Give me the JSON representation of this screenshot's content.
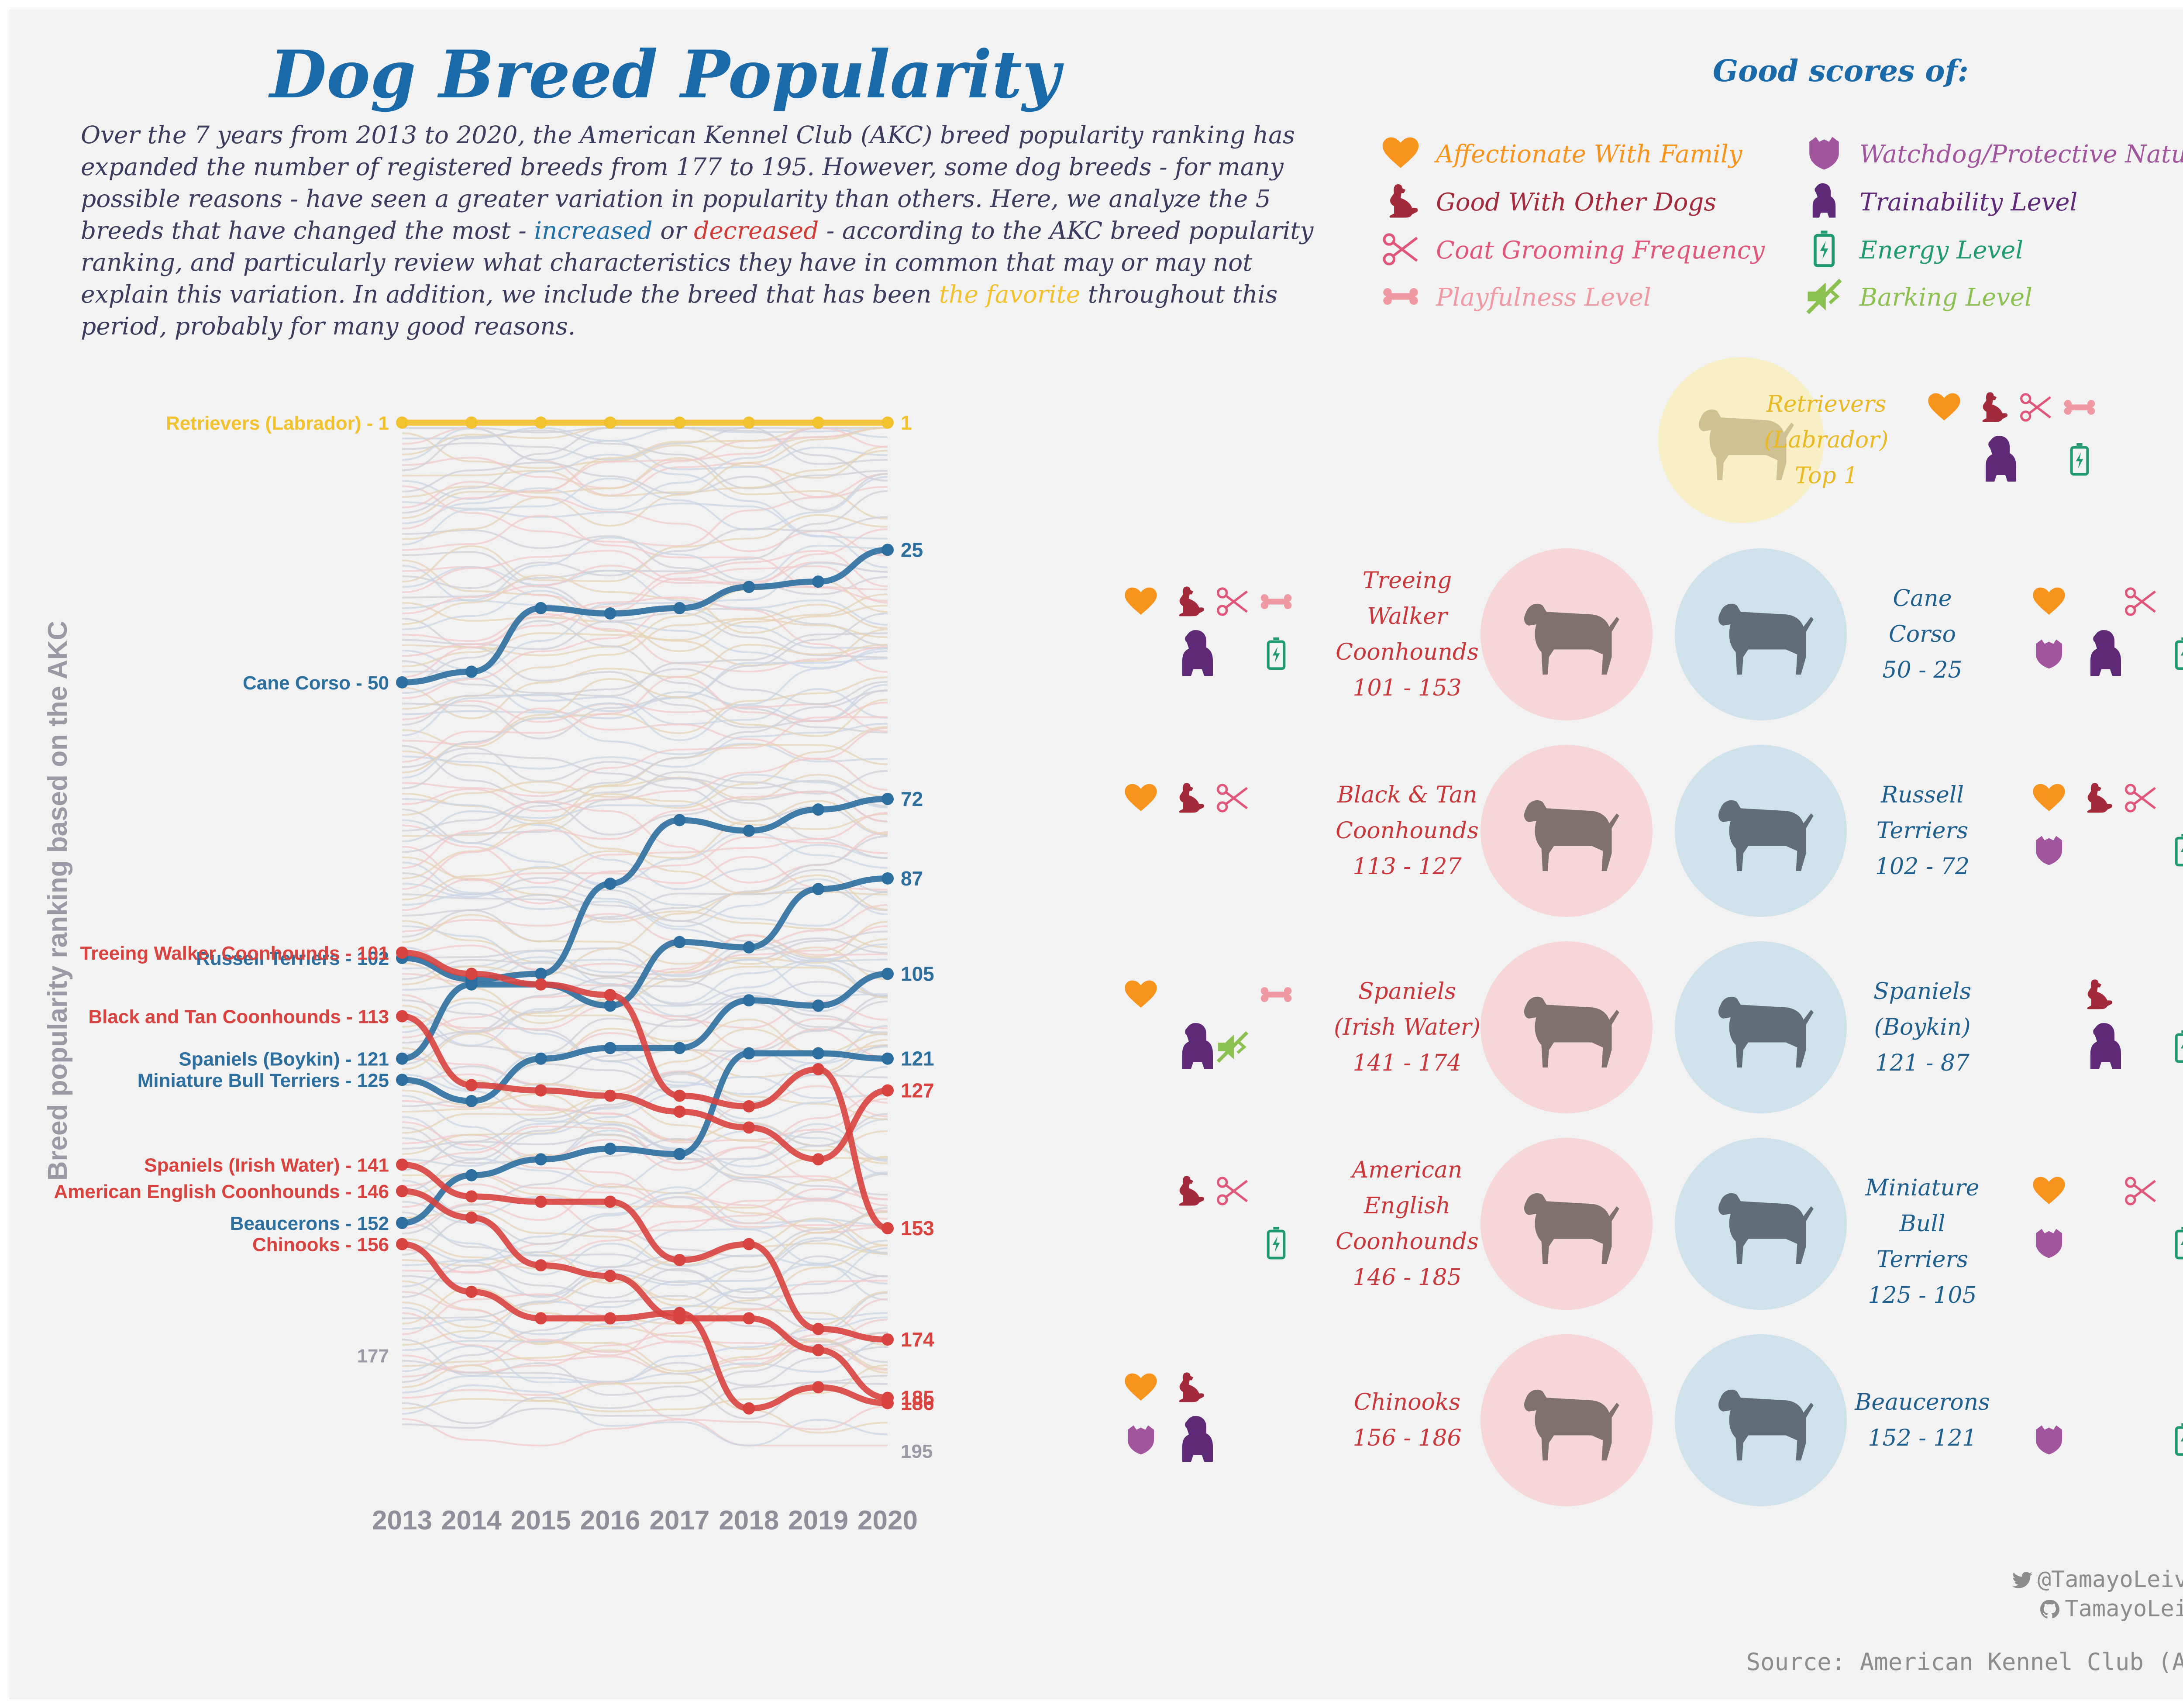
{
  "title": "Dog Breed Popularity",
  "intro": {
    "part1": "Over the 7 years from 2013 to 2020, the American Kennel Club (AKC) breed popularity ranking has expanded the number of registered breeds from 177 to 195. However, some dog breeds - for many possible reasons - have seen a greater variation in popularity than others. Here, we analyze the 5 breeds that have changed the most - ",
    "increased": "increased",
    "or": " or ",
    "decreased": "decreased",
    "part2": " - according to the AKC breed popularity ranking, and particularly review what characteristics they have in common that may or may not explain this variation. In addition, we include the breed that has been ",
    "favorite": "the favorite",
    "part3": " throughout this period, probably for many good reasons."
  },
  "legend": {
    "title": "Good scores of:",
    "items": [
      {
        "key": "affectionate",
        "label": "Affectionate With Family",
        "color": "#f7941d",
        "icon": "heart-icon"
      },
      {
        "key": "other_dogs",
        "label": "Good With Other Dogs",
        "color": "#a32a3a",
        "icon": "sitting-dog-icon"
      },
      {
        "key": "grooming",
        "label": "Coat Grooming Frequency",
        "color": "#e0567a",
        "icon": "scissors-icon"
      },
      {
        "key": "playfulness",
        "label": "Playfulness Level",
        "color": "#ef9aa2",
        "icon": "bone-icon"
      },
      {
        "key": "watchdog",
        "label": "Watchdog/Protective Nature",
        "color": "#a0559c",
        "icon": "shield-icon"
      },
      {
        "key": "trainability",
        "label": "Trainability Level",
        "color": "#5e2a78",
        "icon": "dog-bust-icon"
      },
      {
        "key": "energy",
        "label": "Energy Level",
        "color": "#1f9a72",
        "icon": "battery-icon"
      },
      {
        "key": "barking",
        "label": "Barking Level",
        "color": "#8cc152",
        "icon": "mute-icon"
      }
    ]
  },
  "chart_data": {
    "type": "line",
    "ylabel": "Breed popularity ranking based on the AKC",
    "x": [
      "2013",
      "2014",
      "2015",
      "2016",
      "2017",
      "2018",
      "2019",
      "2020"
    ],
    "y_reversed": true,
    "annotations": {
      "start_total": "177",
      "end_total": "195"
    },
    "colors": {
      "increased": "#2c6f9e",
      "decreased": "#d8433f",
      "favorite": "#f2c12e",
      "background": "#b9b9c4"
    },
    "series": [
      {
        "name": "Retrievers (Labrador)",
        "label": "Retrievers (Labrador) - 1",
        "end_label": "1",
        "group": "favorite",
        "values": [
          1,
          1,
          1,
          1,
          1,
          1,
          1,
          1
        ]
      },
      {
        "name": "Cane Corso",
        "label": "Cane Corso - 50",
        "end_label": "25",
        "group": "increased",
        "values": [
          50,
          48,
          36,
          37,
          36,
          32,
          31,
          25
        ]
      },
      {
        "name": "Russell Terriers",
        "label": "Russell Terriers - 102",
        "end_label": "72",
        "group": "increased",
        "values": [
          102,
          106,
          105,
          88,
          76,
          78,
          74,
          72
        ]
      },
      {
        "name": "Spaniels (Boykin)",
        "label": "Spaniels (Boykin) - 121",
        "end_label": "87",
        "group": "increased",
        "values": [
          121,
          107,
          107,
          111,
          99,
          100,
          89,
          87
        ]
      },
      {
        "name": "Miniature Bull Terriers",
        "label": "Miniature Bull Terriers - 125",
        "end_label": "105",
        "group": "increased",
        "values": [
          125,
          129,
          121,
          119,
          119,
          110,
          111,
          105
        ]
      },
      {
        "name": "Beaucerons",
        "label": "Beaucerons - 152",
        "end_label": "121",
        "group": "increased",
        "values": [
          152,
          143,
          140,
          138,
          139,
          120,
          120,
          121
        ]
      },
      {
        "name": "Treeing Walker Coonhounds",
        "label": "Treeing Walker Coonhounds - 101",
        "end_label": "153",
        "group": "decreased",
        "values": [
          101,
          105,
          107,
          109,
          128,
          130,
          123,
          153
        ]
      },
      {
        "name": "Black and Tan Coonhounds",
        "label": "Black and Tan Coonhounds - 113",
        "end_label": "127",
        "group": "decreased",
        "values": [
          113,
          126,
          127,
          128,
          131,
          134,
          140,
          127
        ]
      },
      {
        "name": "Spaniels (Irish Water)",
        "label": "Spaniels (Irish Water) - 141",
        "end_label": "174",
        "group": "decreased",
        "values": [
          141,
          147,
          148,
          148,
          159,
          156,
          172,
          174
        ]
      },
      {
        "name": "American English Coonhounds",
        "label": "American English Coonhounds - 146",
        "end_label": "185",
        "group": "decreased",
        "values": [
          146,
          151,
          160,
          162,
          170,
          170,
          176,
          185
        ]
      },
      {
        "name": "Chinooks",
        "label": "Chinooks - 156",
        "end_label": "186",
        "group": "decreased",
        "values": [
          156,
          165,
          170,
          170,
          169,
          187,
          183,
          186
        ]
      }
    ]
  },
  "cards": {
    "favorite": {
      "name": "Retrievers (Labrador)",
      "line1": "Retrievers",
      "line2": "(Labrador)",
      "line3": "Top 1",
      "scores": [
        "affectionate",
        "other_dogs",
        "grooming",
        "playfulness",
        "trainability",
        "energy"
      ]
    },
    "decreased": [
      {
        "line1": "Treeing",
        "line2": "Walker",
        "line3": "Coonhounds",
        "line4": "101 - 153",
        "scores": [
          "affectionate",
          "other_dogs",
          "grooming",
          "playfulness",
          "trainability",
          "energy"
        ]
      },
      {
        "line1": "Black & Tan",
        "line2": "Coonhounds",
        "line3": "113 - 127",
        "scores": [
          "affectionate",
          "other_dogs",
          "grooming"
        ]
      },
      {
        "line1": "Spaniels",
        "line2": "(Irish Water)",
        "line3": "141 - 174",
        "scores": [
          "affectionate",
          "playfulness",
          "trainability",
          "barking"
        ]
      },
      {
        "line1": "American",
        "line2": "English",
        "line3": "Coonhounds",
        "line4": "146 - 185",
        "scores": [
          "other_dogs",
          "grooming",
          "energy"
        ]
      },
      {
        "line1": "Chinooks",
        "line2": "156 - 186",
        "scores": [
          "affectionate",
          "other_dogs",
          "watchdog",
          "trainability"
        ]
      }
    ],
    "increased": [
      {
        "line1": "Cane",
        "line2": "Corso",
        "line3": "50 - 25",
        "scores": [
          "affectionate",
          "grooming",
          "watchdog",
          "trainability",
          "energy"
        ]
      },
      {
        "line1": "Russell",
        "line2": "Terriers",
        "line3": "102 - 72",
        "scores": [
          "affectionate",
          "other_dogs",
          "grooming",
          "watchdog",
          "energy"
        ]
      },
      {
        "line1": "Spaniels",
        "line2": "(Boykin)",
        "line3": "121 - 87",
        "scores": [
          "other_dogs",
          "trainability",
          "energy"
        ]
      },
      {
        "line1": "Miniature",
        "line2": "Bull Terriers",
        "line3": "125 - 105",
        "scores": [
          "affectionate",
          "grooming",
          "watchdog",
          "energy"
        ]
      },
      {
        "line1": "Beaucerons",
        "line2": "152 - 121",
        "scores": [
          "watchdog",
          "energy"
        ]
      }
    ]
  },
  "footer": {
    "twitter": "@TamayoLeiva_J",
    "github": "TamayoLeivaJ",
    "source": "Source: American Kennel Club (AKC)"
  }
}
